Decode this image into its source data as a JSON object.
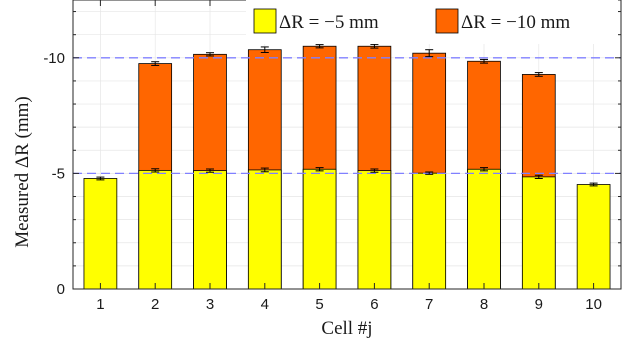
{
  "chart_data": {
    "type": "bar",
    "bar_mode": "overlay",
    "categories": [
      "1",
      "2",
      "3",
      "4",
      "5",
      "6",
      "7",
      "8",
      "9",
      "10"
    ],
    "xlabel": "Cell #j",
    "ylabel": "Measured ΔR (mm)",
    "ylim": [
      0,
      -12.5
    ],
    "yaxis_reversed": true,
    "yticks": [
      0,
      -5,
      -10
    ],
    "ytick_labels": [
      "0",
      "-5",
      "-10"
    ],
    "grid": true,
    "legend_position": "top-right",
    "reference_lines": [
      -5,
      -10
    ],
    "series": [
      {
        "name": "ΔR = −5 mm",
        "color": "#ffff00",
        "values": [
          -4.78,
          -5.13,
          -5.12,
          -5.15,
          -5.18,
          -5.12,
          -5.01,
          -5.18,
          -4.85,
          -4.52
        ],
        "errors": [
          0.06,
          0.07,
          0.07,
          0.08,
          0.07,
          0.07,
          0.05,
          0.07,
          0.07,
          0.06
        ]
      },
      {
        "name": "ΔR = −10 mm",
        "color": "#ff6600",
        "values": [
          null,
          -9.75,
          -10.15,
          -10.35,
          -10.5,
          -10.5,
          -10.2,
          -9.85,
          -9.28,
          null
        ],
        "errors": [
          null,
          0.08,
          0.07,
          0.12,
          0.07,
          0.08,
          0.15,
          0.08,
          0.08,
          null
        ]
      }
    ],
    "colors": {
      "reference_line": "#8080ff",
      "grid": "#e6e6e6",
      "bar_edge": "#000000",
      "axis": "#262626"
    }
  }
}
